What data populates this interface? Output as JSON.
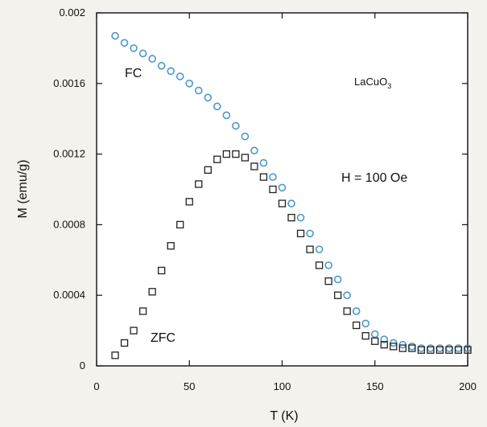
{
  "chart_data": {
    "type": "scatter",
    "xlabel": "T (K)",
    "ylabel": "M (emu/g)",
    "xlim": [
      0,
      200
    ],
    "ylim": [
      0,
      0.002
    ],
    "x_ticks": [
      0,
      50,
      100,
      150,
      200
    ],
    "y_ticks": [
      0,
      0.0004,
      0.0008,
      0.0012,
      0.0016,
      0.002
    ],
    "x_tick_labels": [
      "0",
      "50",
      "100",
      "150",
      "200"
    ],
    "y_tick_labels": [
      "0",
      "0.0004",
      "0.0008",
      "0.0012",
      "0.0016",
      "0.002"
    ],
    "grid": false,
    "annotations": {
      "fc": "FC",
      "zfc": "ZFC",
      "compound_base": "LaCuO",
      "compound_sub": "3",
      "field": "H = 100 Oe"
    },
    "series": [
      {
        "name": "FC",
        "marker": "circle",
        "color": "#4a97cc",
        "x": [
          10,
          15,
          20,
          25,
          30,
          35,
          40,
          45,
          50,
          55,
          60,
          65,
          70,
          75,
          80,
          85,
          90,
          95,
          100,
          105,
          110,
          115,
          120,
          125,
          130,
          135,
          140,
          145,
          150,
          155,
          160,
          165,
          170,
          175,
          180,
          185,
          190,
          195,
          200
        ],
        "y": [
          0.00187,
          0.00183,
          0.0018,
          0.00177,
          0.00174,
          0.0017,
          0.00167,
          0.00164,
          0.0016,
          0.00156,
          0.00152,
          0.00147,
          0.00142,
          0.00136,
          0.0013,
          0.00122,
          0.00115,
          0.00107,
          0.00101,
          0.00092,
          0.00084,
          0.00075,
          0.00066,
          0.00057,
          0.00049,
          0.0004,
          0.00031,
          0.00024,
          0.00018,
          0.00015,
          0.00013,
          0.00012,
          0.00011,
          0.0001,
          0.0001,
          0.0001,
          0.0001,
          0.0001,
          0.0001
        ]
      },
      {
        "name": "ZFC",
        "marker": "square",
        "color": "#222222",
        "x": [
          10,
          15,
          20,
          25,
          30,
          35,
          40,
          45,
          50,
          55,
          60,
          65,
          70,
          75,
          80,
          85,
          90,
          95,
          100,
          105,
          110,
          115,
          120,
          125,
          130,
          135,
          140,
          145,
          150,
          155,
          160,
          165,
          170,
          175,
          180,
          185,
          190,
          195,
          200
        ],
        "y": [
          6e-05,
          0.00013,
          0.0002,
          0.00031,
          0.00042,
          0.00054,
          0.00068,
          0.0008,
          0.00093,
          0.00103,
          0.00111,
          0.00117,
          0.0012,
          0.0012,
          0.00118,
          0.00113,
          0.00107,
          0.001,
          0.00092,
          0.00084,
          0.00075,
          0.00066,
          0.00057,
          0.00048,
          0.0004,
          0.00031,
          0.00023,
          0.00017,
          0.00014,
          0.00012,
          0.00011,
          0.0001,
          0.0001,
          9e-05,
          9e-05,
          9e-05,
          9e-05,
          9e-05,
          9e-05
        ]
      }
    ]
  }
}
